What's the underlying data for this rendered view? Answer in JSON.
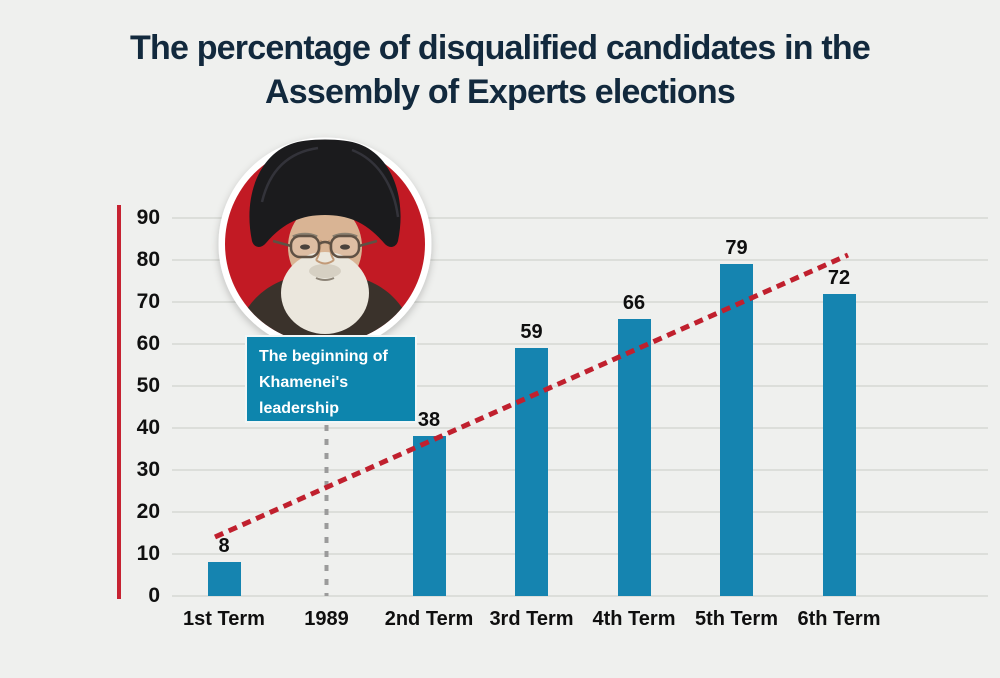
{
  "title_lines": [
    "The percentage of disqualified candidates in the",
    "Assembly of Experts elections"
  ],
  "annotation": {
    "lines": [
      "The beginning of",
      "Khamenei's",
      "leadership"
    ]
  },
  "colors": {
    "background": "#eff0ee",
    "title": "#12293d",
    "bar": "#1584b0",
    "grid_line": "#dcdeda",
    "y_axis_line": "#c62231",
    "trend_line": "#c0202e",
    "year_marker_line": "#9b9b9b",
    "tick_label": "#101010",
    "annotation_bg": "#0d85ad",
    "annotation_text": "#ffffff",
    "portrait_bg": "#c21a24",
    "portrait_ring": "#ffffff"
  },
  "chart_data": {
    "type": "bar",
    "title": "The percentage of disqualified candidates in the Assembly of Experts elections",
    "categories": [
      "1st Term",
      "1989",
      "2nd Term",
      "3rd Term",
      "4th Term",
      "5th Term",
      "6th Term"
    ],
    "values": [
      8,
      null,
      38,
      59,
      66,
      79,
      72
    ],
    "unit": "percent",
    "yticks": [
      90,
      80,
      70,
      60,
      50,
      40,
      30,
      20,
      10,
      0
    ],
    "ylim": [
      0,
      90
    ],
    "grid": true,
    "legend": false,
    "bar_color": "#1584b0",
    "annotations": {
      "trendline": {
        "style": "dotted",
        "color": "#c0202e",
        "from": {
          "category": "1st Term",
          "value": 14
        },
        "to": {
          "category": "6th Term",
          "value": 81
        }
      },
      "year_marker": {
        "category": "1989",
        "style": "dashed-vertical-line",
        "color": "#9b9b9b",
        "caption": "The beginning of Khamenei's leadership"
      }
    }
  }
}
